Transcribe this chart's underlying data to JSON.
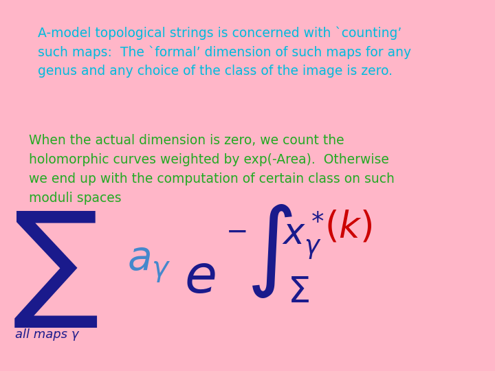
{
  "background_color": "#FFB6C8",
  "text1_line1": "A-model topological strings is concerned with `counting’",
  "text1_line2": "such maps:  The `formal’ dimension of such maps for any",
  "text1_line3": "genus and any choice of the class of the image is zero.",
  "text1_color": "#00BBDD",
  "text2_line1": "When the actual dimension is zero, we count the",
  "text2_line2": "holomorphic curves weighted by exp(-Area).  Otherwise",
  "text2_line3": "we end up with the computation of certain class on such",
  "text2_line4": "moduli spaces",
  "text2_color": "#22AA22",
  "formula_color": "#1a1a8c",
  "formula_red": "#CC0000",
  "formula_blue_light": "#4488CC",
  "figwidth": 7.2,
  "figheight": 5.4,
  "dpi": 100
}
